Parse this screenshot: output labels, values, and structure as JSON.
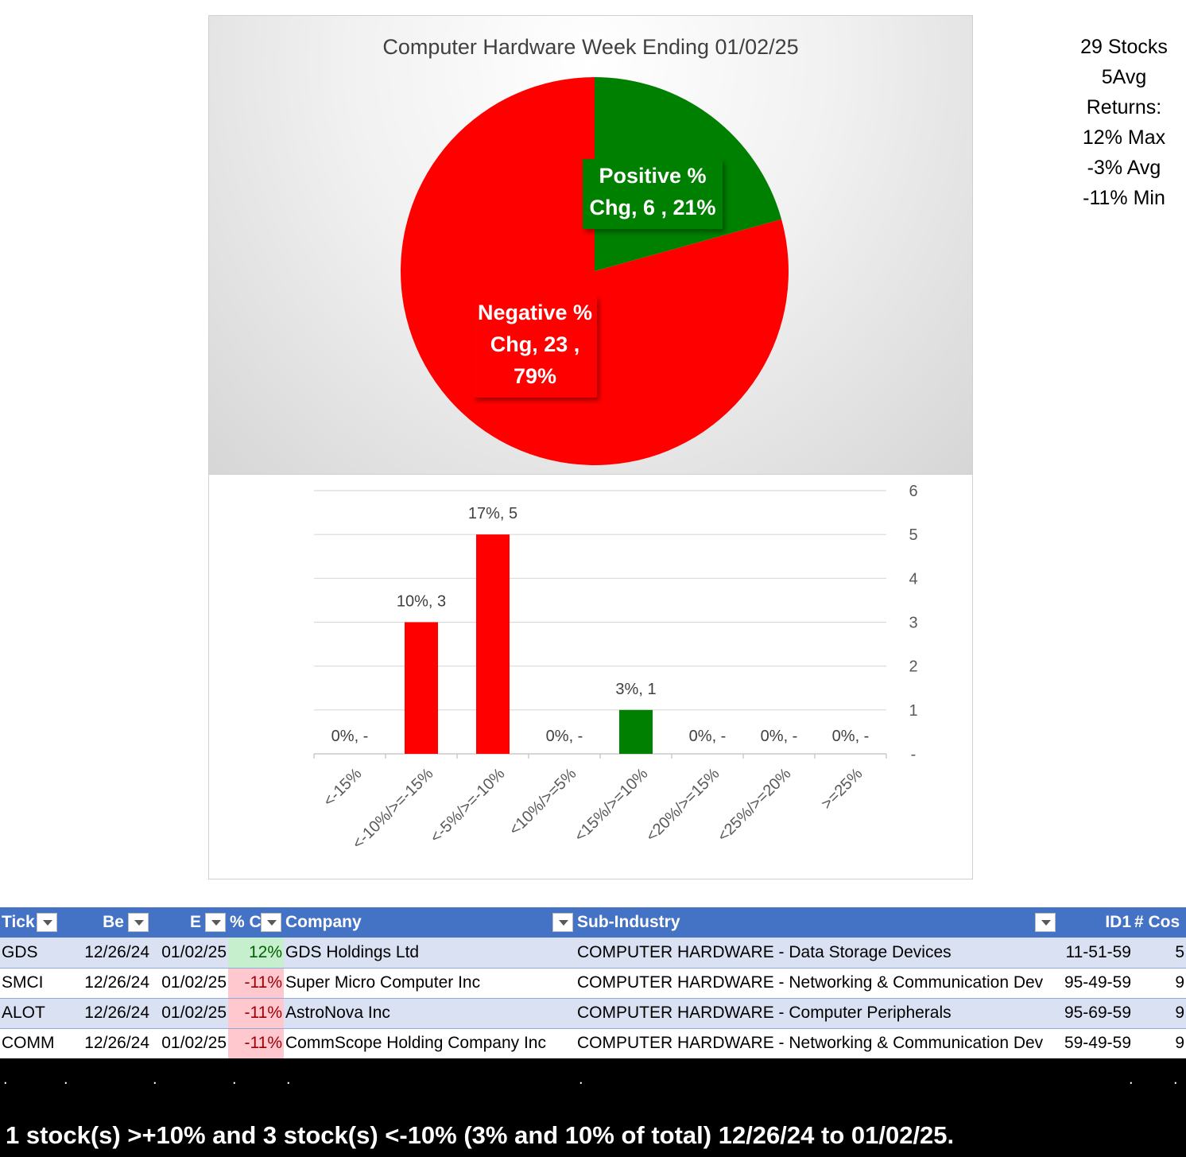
{
  "chart_data": [
    {
      "type": "pie",
      "title": "Computer Hardware Week Ending 01/02/25",
      "slices": [
        {
          "label": "Positive % Chg",
          "label_line1": "Positive %",
          "label_line2": "Chg,  6 , 21%",
          "label_line3": "",
          "count": 6,
          "percent": 21,
          "color": "#008000"
        },
        {
          "label": "Negative % Chg",
          "label_line1": "Negative %",
          "label_line2": "Chg,  23 ,",
          "label_line3": "79%",
          "count": 23,
          "percent": 79,
          "color": "#ff0000"
        }
      ]
    },
    {
      "type": "bar",
      "categories": [
        "<-15%",
        "<-10%/>=-15%",
        "<-5%/>=-10%",
        "<10%/>=5%",
        "<15%/>=10%",
        "<20%/>=15%",
        "<25%/>=20%",
        ">=25%"
      ],
      "values": [
        0,
        3,
        5,
        0,
        1,
        0,
        0,
        0
      ],
      "data_labels": [
        "0%,  -",
        "10%,  3",
        "17%,  5",
        "0%,  -",
        "3%,  1",
        "0%,  -",
        "0%,  -",
        "0%,  -"
      ],
      "colors": [
        "#ff0000",
        "#ff0000",
        "#ff0000",
        "#ff0000",
        "#008000",
        "#008000",
        "#008000",
        "#008000"
      ],
      "yticks": [
        "-",
        "1",
        "2",
        "3",
        "4",
        "5",
        "6"
      ],
      "ylim": [
        0,
        6
      ],
      "y_axis_position": "right",
      "grid": true
    }
  ],
  "summary": {
    "lines": [
      "29 Stocks",
      "5Avg",
      "Returns:",
      "12% Max",
      "-3% Avg",
      "-11% Min"
    ]
  },
  "table": {
    "headers": [
      "Tick",
      "Be",
      "E",
      "% C",
      "Company",
      "Sub-Industry",
      "ID1",
      "# Cos"
    ],
    "rows": [
      {
        "ticker": "GDS",
        "begin": "12/26/24",
        "end": "01/02/25",
        "pct": "12%",
        "sign": "pos",
        "company": "GDS Holdings Ltd",
        "sub_industry": "COMPUTER HARDWARE - Data Storage Devices",
        "id1": "11-51-59",
        "cos": "5"
      },
      {
        "ticker": "SMCI",
        "begin": "12/26/24",
        "end": "01/02/25",
        "pct": "-11%",
        "sign": "neg",
        "company": "Super Micro Computer Inc",
        "sub_industry": "COMPUTER HARDWARE - Networking & Communication Dev",
        "id1": "95-49-59",
        "cos": "9"
      },
      {
        "ticker": "ALOT",
        "begin": "12/26/24",
        "end": "01/02/25",
        "pct": "-11%",
        "sign": "neg",
        "company": "AstroNova Inc",
        "sub_industry": "COMPUTER HARDWARE - Computer Peripherals",
        "id1": "95-69-59",
        "cos": "9"
      },
      {
        "ticker": "COMM",
        "begin": "12/26/24",
        "end": "01/02/25",
        "pct": "-11%",
        "sign": "neg",
        "company": "CommScope Holding Company Inc",
        "sub_industry": "COMPUTER HARDWARE - Networking & Communication Dev",
        "id1": "59-49-59",
        "cos": "9"
      }
    ]
  },
  "footer": {
    "dot": ".",
    "text": "1 stock(s) >+10% and 3 stock(s) <-10% (3% and 10% of total) 12/26/24 to 01/02/25."
  }
}
